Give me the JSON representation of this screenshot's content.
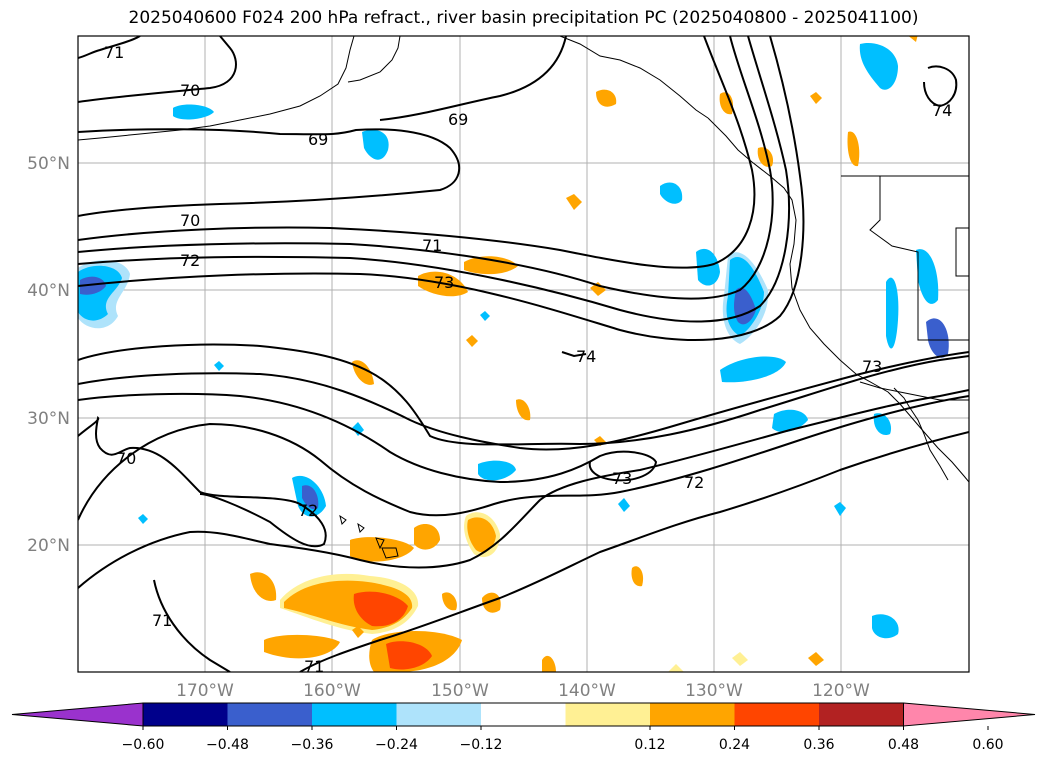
{
  "title": "2025040600 F024 200 hPa refract., river basin precipitation PC (2025040800 - 2025041100)",
  "map": {
    "lat_ticks": [
      "50°N",
      "40°N",
      "30°N",
      "20°N"
    ],
    "lon_ticks": [
      "170°W",
      "160°W",
      "150°W",
      "140°W",
      "130°W",
      "120°W"
    ],
    "grid": true
  },
  "contour_labels": [
    "71",
    "70",
    "69",
    "69",
    "70",
    "71",
    "72",
    "73",
    "74",
    "74",
    "73",
    "73",
    "72",
    "70",
    "72",
    "71",
    "71"
  ],
  "colorbar": {
    "tick_labels": [
      "−0.60",
      "−0.48",
      "−0.36",
      "−0.24",
      "−0.12",
      "0.12",
      "0.24",
      "0.36",
      "0.48",
      "0.60"
    ],
    "colors": [
      "#9a32cd",
      "#00008b",
      "#3a5fcd",
      "#00bfff",
      "#aee3fb",
      "#ffffff",
      "#fff094",
      "#ffa500",
      "#ff4500",
      "#b22222",
      "#ff86ab"
    ]
  }
}
